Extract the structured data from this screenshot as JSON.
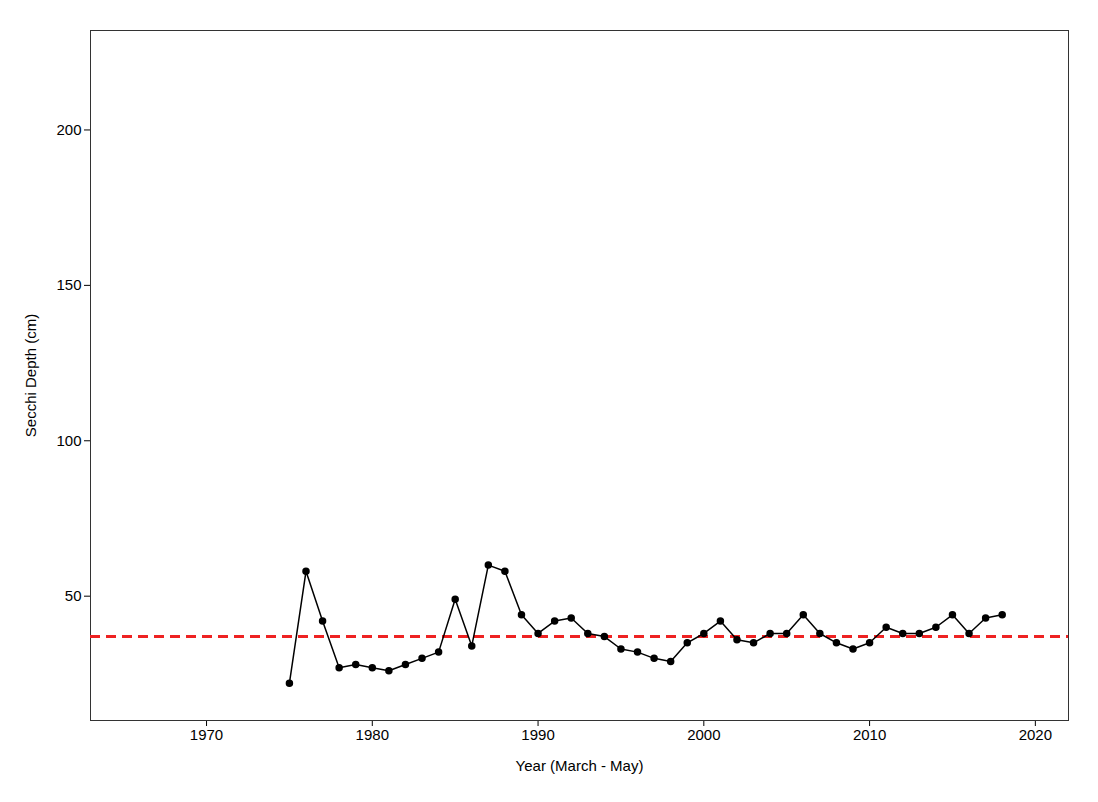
{
  "chart_data": {
    "type": "line",
    "xlabel": "Year (March - May)",
    "ylabel": "Secchi Depth (cm)",
    "x": [
      1975,
      1976,
      1977,
      1978,
      1979,
      1980,
      1981,
      1982,
      1983,
      1984,
      1985,
      1986,
      1987,
      1988,
      1989,
      1990,
      1991,
      1992,
      1993,
      1994,
      1995,
      1996,
      1997,
      1998,
      1999,
      2000,
      2001,
      2002,
      2003,
      2004,
      2005,
      2006,
      2007,
      2008,
      2009,
      2010,
      2011,
      2012,
      2013,
      2014,
      2015,
      2016,
      2017,
      2018
    ],
    "values": [
      22,
      58,
      42,
      27,
      28,
      27,
      26,
      28,
      30,
      32,
      49,
      34,
      60,
      58,
      44,
      38,
      42,
      43,
      38,
      37,
      33,
      32,
      30,
      29,
      35,
      38,
      42,
      36,
      35,
      38,
      38,
      44,
      38,
      35,
      33,
      35,
      40,
      38,
      38,
      40,
      44,
      38,
      43,
      44
    ],
    "color": "#000000",
    "marker": "circle",
    "line_style": "solid",
    "reference_line": {
      "y": 37,
      "color": "#EE2222",
      "line_style": "dashed"
    },
    "xlim": [
      1963,
      2022
    ],
    "ylim": [
      10,
      232
    ],
    "xticks": [
      1970,
      1980,
      1990,
      2000,
      2010,
      2020
    ],
    "yticks": [
      50,
      100,
      150,
      200
    ],
    "grid": false
  }
}
